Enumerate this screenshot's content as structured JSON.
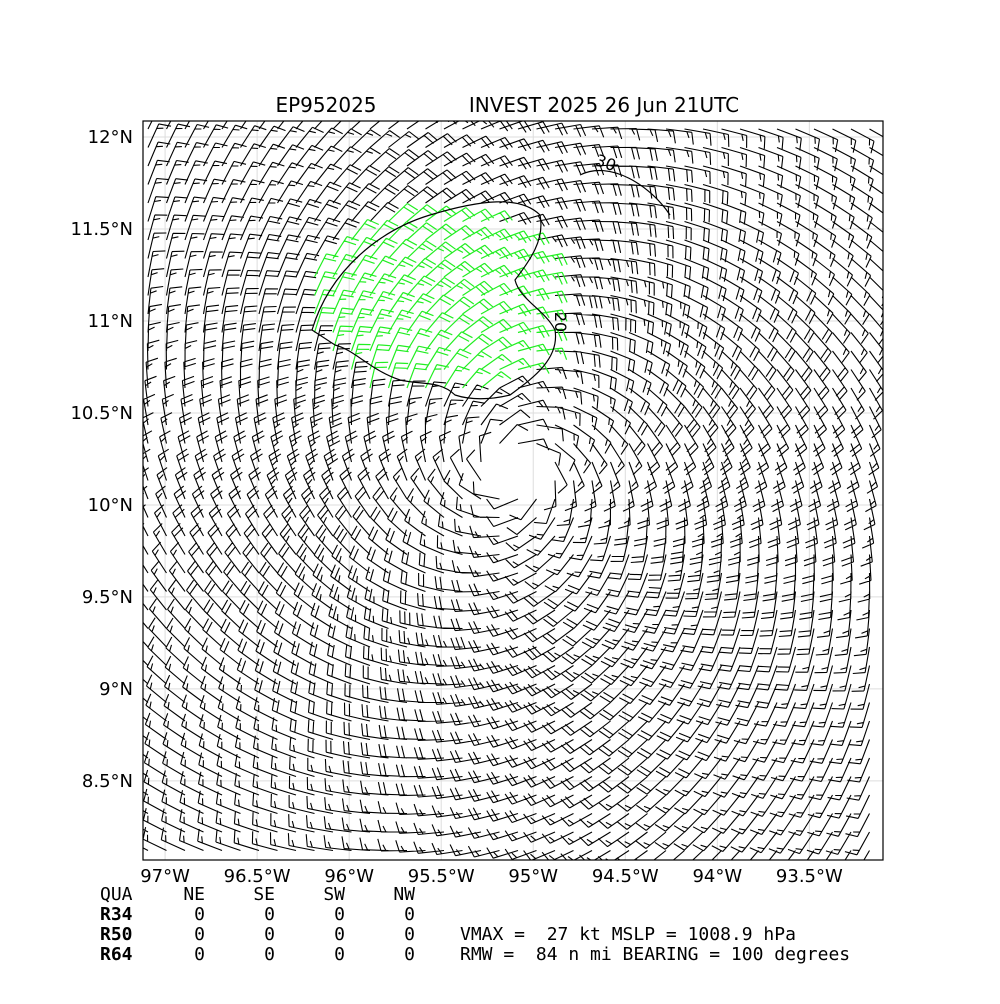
{
  "chart_data": {
    "type": "wind-barb",
    "title_left": "EP952025",
    "title_right": "INVEST 2025 26 Jun 21UTC",
    "xlim": [
      -97.12,
      -93.1
    ],
    "ylim": [
      8.07,
      12.087
    ],
    "xticks": [
      {
        "value": -97,
        "label": "97°W"
      },
      {
        "value": -96.5,
        "label": "96.5°W"
      },
      {
        "value": -96,
        "label": "96°W"
      },
      {
        "value": -95.5,
        "label": "95.5°W"
      },
      {
        "value": -95,
        "label": "95°W"
      },
      {
        "value": -94.5,
        "label": "94.5°W"
      },
      {
        "value": -94,
        "label": "94°W"
      },
      {
        "value": -93.5,
        "label": "93.5°W"
      }
    ],
    "yticks": [
      {
        "value": 8.5,
        "label": "8.5°N"
      },
      {
        "value": 9,
        "label": "9°N"
      },
      {
        "value": 9.5,
        "label": "9.5°N"
      },
      {
        "value": 10,
        "label": "10°N"
      },
      {
        "value": 10.5,
        "label": "10.5°N"
      },
      {
        "value": 11,
        "label": "11°N"
      },
      {
        "value": 11.5,
        "label": "11.5°N"
      },
      {
        "value": 12,
        "label": "12°N"
      }
    ],
    "grid": true,
    "contour_labels": [
      "20",
      "30"
    ]
  },
  "radii_table": {
    "header": [
      "QUA",
      "NE",
      "SE",
      "SW",
      "NW"
    ],
    "rows": [
      [
        "R34",
        "0",
        "0",
        "0",
        "0"
      ],
      [
        "R50",
        "0",
        "0",
        "0",
        "0"
      ],
      [
        "R64",
        "0",
        "0",
        "0",
        "0"
      ]
    ]
  },
  "stats": [
    "VMAX =  27 kt MSLP = 1008.9 hPa",
    "RMW =  84 n mi BEARING = 100 degrees"
  ]
}
